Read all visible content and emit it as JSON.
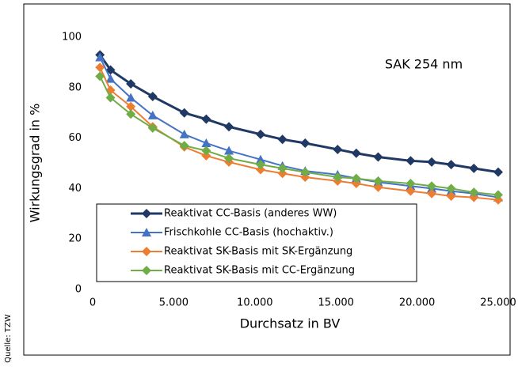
{
  "chart_data": {
    "type": "line",
    "annotation": "SAK 254 nm",
    "source": "Quelle: TZW",
    "x_label": "Durchsatz in BV",
    "y_label": "Wirkungsgrad in %",
    "x": [
      450,
      1100,
      2350,
      3700,
      5650,
      7000,
      8400,
      10350,
      11700,
      13100,
      15100,
      16250,
      17600,
      19600,
      20900,
      22100,
      23500,
      25000
    ],
    "series": [
      {
        "name": "Reaktivat CC-Basis (anderes WW)",
        "color": "#1f3864",
        "marker": "diamond",
        "values": [
          93,
          87,
          81.5,
          76.5,
          70,
          67.5,
          64.5,
          61.5,
          59.5,
          58,
          55.5,
          54,
          52.5,
          51,
          50.5,
          49.5,
          48,
          46.5
        ]
      },
      {
        "name": "Frischkohle CC-Basis (hochaktiv.)",
        "color": "#4472c4",
        "marker": "triangle",
        "values": [
          92,
          83.5,
          76,
          69,
          61.5,
          58,
          55,
          51.5,
          49,
          47,
          45.5,
          44,
          42.5,
          41,
          40,
          39,
          38,
          36.5
        ]
      },
      {
        "name": "Reaktivat SK-Basis mit SK-Ergänzung",
        "color": "#ed7d31",
        "marker": "diamond",
        "values": [
          88,
          79,
          72.5,
          64.5,
          56.5,
          53,
          50.5,
          47.5,
          46,
          44.5,
          43,
          42,
          40.5,
          39,
          38,
          37,
          36.5,
          35.5
        ]
      },
      {
        "name": "Reaktivat SK-Basis mit CC-Ergänzung",
        "color": "#70ad47",
        "marker": "diamond",
        "values": [
          84.5,
          76,
          69.5,
          64,
          57,
          55,
          52,
          49.5,
          48,
          46.5,
          44.5,
          44,
          43,
          42,
          41,
          40,
          38.5,
          37.5
        ]
      }
    ],
    "xlim": [
      0,
      25000
    ],
    "xticks": [
      0,
      {
        "value": 5000,
        "label": "5.000"
      },
      {
        "value": 10000,
        "label": "10.000"
      },
      {
        "value": 15000,
        "label": "15.000"
      },
      {
        "value": 20000,
        "label": "20.000"
      },
      {
        "value": 25000,
        "label": "25.000"
      }
    ],
    "ylim": [
      0,
      100
    ],
    "yticks": [
      0,
      20,
      40,
      60,
      80,
      100
    ]
  }
}
